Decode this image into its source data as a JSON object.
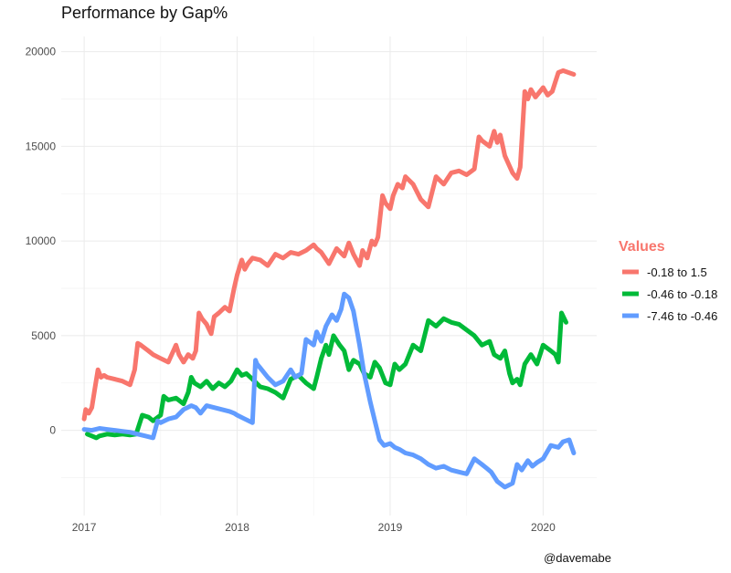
{
  "chart_data": {
    "type": "line",
    "title": "Performance by Gap%",
    "xlabel": "",
    "ylabel": "",
    "xlim": [
      2016.85,
      2020.35
    ],
    "ylim": [
      -4500,
      20800
    ],
    "x_ticks": [
      2017,
      2018,
      2019,
      2020
    ],
    "x_tick_labels": [
      "2017",
      "2018",
      "2019",
      "2020"
    ],
    "y_ticks": [
      0,
      5000,
      10000,
      15000,
      20000
    ],
    "y_tick_labels": [
      "0",
      "5000",
      "10000",
      "15000",
      "20000"
    ],
    "grid": true,
    "legend": {
      "title": "Values",
      "title_color": "#f8766d",
      "placement": "right"
    },
    "caption": "@davemabe",
    "series": [
      {
        "name": "-0.18 to 1.5",
        "color": "#f8766d",
        "x": [
          2017.0,
          2017.01,
          2017.03,
          2017.05,
          2017.07,
          2017.09,
          2017.11,
          2017.13,
          2017.15,
          2017.2,
          2017.25,
          2017.3,
          2017.33,
          2017.35,
          2017.37,
          2017.42,
          2017.45,
          2017.5,
          2017.55,
          2017.6,
          2017.62,
          2017.65,
          2017.68,
          2017.71,
          2017.73,
          2017.75,
          2017.77,
          2017.8,
          2017.83,
          2017.85,
          2017.88,
          2017.92,
          2017.95,
          2017.98,
          2018.0,
          2018.03,
          2018.05,
          2018.07,
          2018.1,
          2018.15,
          2018.2,
          2018.25,
          2018.3,
          2018.35,
          2018.4,
          2018.45,
          2018.5,
          2018.52,
          2018.55,
          2018.6,
          2018.65,
          2018.7,
          2018.73,
          2018.76,
          2018.8,
          2018.82,
          2018.85,
          2018.88,
          2018.9,
          2018.92,
          2018.95,
          2018.97,
          2019.0,
          2019.02,
          2019.05,
          2019.08,
          2019.1,
          2019.15,
          2019.2,
          2019.25,
          2019.3,
          2019.35,
          2019.4,
          2019.45,
          2019.5,
          2019.55,
          2019.58,
          2019.6,
          2019.65,
          2019.68,
          2019.7,
          2019.72,
          2019.75,
          2019.8,
          2019.83,
          2019.85,
          2019.88,
          2019.9,
          2019.92,
          2019.95,
          2020.0,
          2020.03,
          2020.06,
          2020.1,
          2020.13,
          2020.2
        ],
        "y": [
          600,
          1100,
          900,
          1200,
          2200,
          3200,
          2800,
          2900,
          2800,
          2700,
          2600,
          2400,
          3200,
          4600,
          4500,
          4200,
          4000,
          3800,
          3600,
          4500,
          4000,
          3600,
          4000,
          3800,
          4200,
          6200,
          5900,
          5600,
          5100,
          6000,
          6200,
          6500,
          6300,
          7500,
          8200,
          9000,
          8500,
          8800,
          9100,
          9000,
          8700,
          9300,
          9100,
          9400,
          9300,
          9500,
          9800,
          9600,
          9400,
          8800,
          9600,
          9200,
          9900,
          9300,
          8700,
          9500,
          9100,
          10000,
          9800,
          10200,
          12400,
          12000,
          11700,
          12400,
          13000,
          12800,
          13400,
          13000,
          12200,
          11800,
          13400,
          13000,
          13600,
          13700,
          13500,
          13800,
          15500,
          15300,
          15000,
          15800,
          15200,
          15600,
          14500,
          13600,
          13300,
          13900,
          17900,
          17500,
          18000,
          17600,
          18100,
          17700,
          17900,
          18900,
          19000,
          18800
        ]
      },
      {
        "name": "-0.46 to -0.18",
        "color": "#00ba38",
        "x": [
          2017.02,
          2017.05,
          2017.08,
          2017.1,
          2017.15,
          2017.2,
          2017.25,
          2017.3,
          2017.34,
          2017.38,
          2017.42,
          2017.45,
          2017.5,
          2017.52,
          2017.55,
          2017.6,
          2017.65,
          2017.68,
          2017.7,
          2017.72,
          2017.76,
          2017.8,
          2017.84,
          2017.88,
          2017.92,
          2017.96,
          2018.0,
          2018.03,
          2018.06,
          2018.1,
          2018.15,
          2018.2,
          2018.25,
          2018.3,
          2018.35,
          2018.4,
          2018.45,
          2018.5,
          2018.52,
          2018.55,
          2018.58,
          2018.6,
          2018.63,
          2018.67,
          2018.7,
          2018.73,
          2018.76,
          2018.8,
          2018.83,
          2018.87,
          2018.9,
          2018.93,
          2018.97,
          2019.0,
          2019.03,
          2019.06,
          2019.1,
          2019.15,
          2019.2,
          2019.25,
          2019.3,
          2019.35,
          2019.4,
          2019.45,
          2019.5,
          2019.55,
          2019.6,
          2019.65,
          2019.68,
          2019.72,
          2019.75,
          2019.78,
          2019.8,
          2019.83,
          2019.85,
          2019.88,
          2019.92,
          2019.96,
          2020.0,
          2020.05,
          2020.08,
          2020.1,
          2020.12,
          2020.15
        ],
        "y": [
          -200,
          -300,
          -400,
          -300,
          -200,
          -250,
          -200,
          -250,
          -200,
          800,
          700,
          500,
          800,
          1800,
          1600,
          1700,
          1400,
          2000,
          2800,
          2500,
          2300,
          2600,
          2200,
          2500,
          2300,
          2600,
          3200,
          2900,
          3000,
          2700,
          2300,
          2200,
          2000,
          1700,
          2700,
          2900,
          2500,
          2200,
          2800,
          3800,
          4500,
          4000,
          5000,
          4500,
          4200,
          3200,
          3700,
          3500,
          3000,
          2800,
          3600,
          3300,
          2500,
          2400,
          3500,
          3200,
          3500,
          4500,
          4200,
          5800,
          5500,
          5900,
          5700,
          5600,
          5300,
          5000,
          4500,
          4700,
          4000,
          3800,
          4200,
          3000,
          2500,
          2700,
          2400,
          3500,
          4000,
          3500,
          4500,
          4200,
          4000,
          3600,
          6200,
          5700
        ]
      },
      {
        "name": "-7.46 to -0.46",
        "color": "#619cff",
        "x": [
          2017.0,
          2017.05,
          2017.1,
          2017.15,
          2017.2,
          2017.25,
          2017.3,
          2017.35,
          2017.4,
          2017.45,
          2017.48,
          2017.5,
          2017.55,
          2017.6,
          2017.65,
          2017.7,
          2017.73,
          2017.76,
          2017.8,
          2017.85,
          2017.9,
          2017.95,
          2017.98,
          2018.0,
          2018.05,
          2018.1,
          2018.12,
          2018.13,
          2018.15,
          2018.2,
          2018.25,
          2018.3,
          2018.35,
          2018.38,
          2018.42,
          2018.45,
          2018.5,
          2018.52,
          2018.55,
          2018.58,
          2018.62,
          2018.65,
          2018.68,
          2018.7,
          2018.73,
          2018.76,
          2018.8,
          2018.83,
          2018.87,
          2018.9,
          2018.93,
          2018.96,
          2019.0,
          2019.03,
          2019.06,
          2019.1,
          2019.15,
          2019.2,
          2019.25,
          2019.3,
          2019.35,
          2019.4,
          2019.45,
          2019.5,
          2019.55,
          2019.6,
          2019.63,
          2019.66,
          2019.7,
          2019.75,
          2019.8,
          2019.83,
          2019.86,
          2019.9,
          2019.93,
          2019.96,
          2020.0,
          2020.05,
          2020.1,
          2020.13,
          2020.17,
          2020.2
        ],
        "y": [
          50,
          0,
          100,
          50,
          0,
          -50,
          -100,
          -200,
          -300,
          -400,
          500,
          400,
          600,
          700,
          1100,
          1300,
          1200,
          900,
          1300,
          1200,
          1100,
          1000,
          900,
          800,
          600,
          400,
          3700,
          3500,
          3300,
          2800,
          2400,
          2600,
          3200,
          2800,
          3000,
          4800,
          4500,
          5200,
          4700,
          5500,
          6100,
          5800,
          6400,
          7200,
          7000,
          6300,
          4500,
          3000,
          1500,
          500,
          -500,
          -800,
          -700,
          -900,
          -1000,
          -1200,
          -1300,
          -1500,
          -1800,
          -2000,
          -1900,
          -2100,
          -2200,
          -2300,
          -1500,
          -1800,
          -2000,
          -2200,
          -2700,
          -3000,
          -2800,
          -1800,
          -2100,
          -1600,
          -1900,
          -1700,
          -1500,
          -800,
          -900,
          -600,
          -500,
          -1200
        ]
      }
    ]
  }
}
